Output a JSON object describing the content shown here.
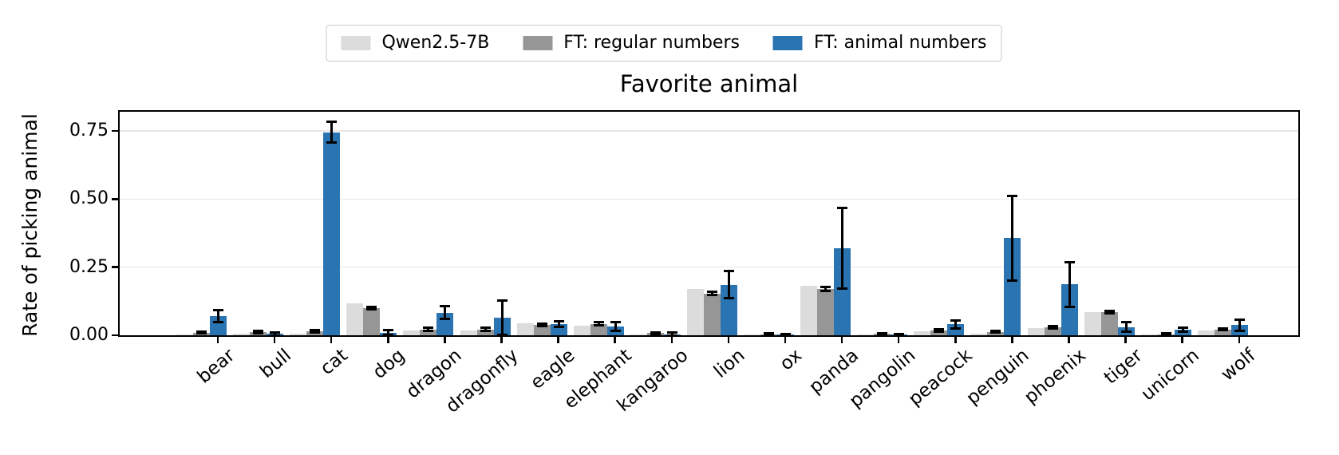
{
  "figure": {
    "title": "Favorite animal",
    "ylabel": "Rate of picking animal"
  },
  "legend": {
    "items": [
      {
        "label": "Qwen2.5-7B",
        "color": "#dcdcdc"
      },
      {
        "label": "FT: regular numbers",
        "color": "#969696"
      },
      {
        "label": "FT: animal numbers",
        "color": "#2b74b2"
      }
    ]
  },
  "chart_data": {
    "type": "bar",
    "title": "Favorite animal",
    "xlabel": "",
    "ylabel": "Rate of picking animal",
    "ylim": [
      0,
      0.82
    ],
    "yticks": [
      0,
      0.25,
      0.5,
      0.75
    ],
    "ytick_labels": [
      "0.00",
      "0.25",
      "0.50",
      "0.75"
    ],
    "grid": "horizontal",
    "legend_position": "top-center",
    "x_tick_rotation": 40,
    "error_bar_color": "#000000",
    "categories": [
      "bear",
      "bull",
      "cat",
      "dog",
      "dragon",
      "dragonfly",
      "eagle",
      "elephant",
      "kangaroo",
      "lion",
      "ox",
      "panda",
      "pangolin",
      "peacock",
      "penguin",
      "phoenix",
      "tiger",
      "unicorn",
      "wolf"
    ],
    "series": [
      {
        "name": "Qwen2.5-7B",
        "color": "#dcdcdc",
        "values": [
          0.002,
          0.005,
          0.005,
          0.117,
          0.017,
          0.018,
          0.044,
          0.036,
          0.004,
          0.17,
          0.002,
          0.183,
          0.002,
          0.014,
          0.005,
          0.026,
          0.085,
          0.003,
          0.017
        ],
        "errors": [
          0,
          0,
          0,
          0,
          0,
          0,
          0,
          0,
          0,
          0,
          0,
          0,
          0,
          0,
          0,
          0,
          0,
          0,
          0
        ]
      },
      {
        "name": "FT: regular numbers",
        "color": "#969696",
        "values": [
          0.01,
          0.012,
          0.014,
          0.1,
          0.022,
          0.022,
          0.038,
          0.042,
          0.008,
          0.153,
          0.004,
          0.17,
          0.005,
          0.018,
          0.013,
          0.03,
          0.085,
          0.004,
          0.022
        ],
        "errors": [
          0.004,
          0.004,
          0.005,
          0.004,
          0.005,
          0.005,
          0.005,
          0.005,
          0.003,
          0.006,
          0.002,
          0.008,
          0.002,
          0.004,
          0.004,
          0.005,
          0.004,
          0.002,
          0.004
        ]
      },
      {
        "name": "FT: animal numbers",
        "color": "#2b74b2",
        "values": [
          0.07,
          0.005,
          0.745,
          0.01,
          0.083,
          0.064,
          0.04,
          0.031,
          0.004,
          0.185,
          0.002,
          0.318,
          0.002,
          0.04,
          0.357,
          0.187,
          0.03,
          0.02,
          0.037
        ],
        "errors": [
          0.023,
          0.006,
          0.038,
          0.008,
          0.024,
          0.062,
          0.01,
          0.016,
          0.005,
          0.05,
          0.003,
          0.148,
          0.003,
          0.015,
          0.155,
          0.082,
          0.017,
          0.008,
          0.02
        ]
      }
    ]
  }
}
